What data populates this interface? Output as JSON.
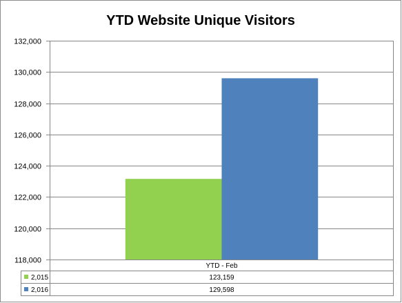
{
  "chart_data": {
    "type": "bar",
    "title": "YTD Website Unique Visitors",
    "categories": [
      "YTD - Feb"
    ],
    "series": [
      {
        "name": "2,015",
        "values": [
          123159
        ],
        "value_labels": [
          "123,159"
        ],
        "color": "#92d050"
      },
      {
        "name": "2,016",
        "values": [
          129598
        ],
        "value_labels": [
          "129,598"
        ],
        "color": "#4f81bd"
      }
    ],
    "ylim": [
      118000,
      132000
    ],
    "yticks": [
      118000,
      120000,
      122000,
      124000,
      126000,
      128000,
      130000,
      132000
    ],
    "ytick_labels": [
      "118,000",
      "120,000",
      "122,000",
      "124,000",
      "126,000",
      "128,000",
      "130,000",
      "132,000"
    ],
    "grid": true,
    "legend": "data-table-below",
    "data_table": true
  }
}
